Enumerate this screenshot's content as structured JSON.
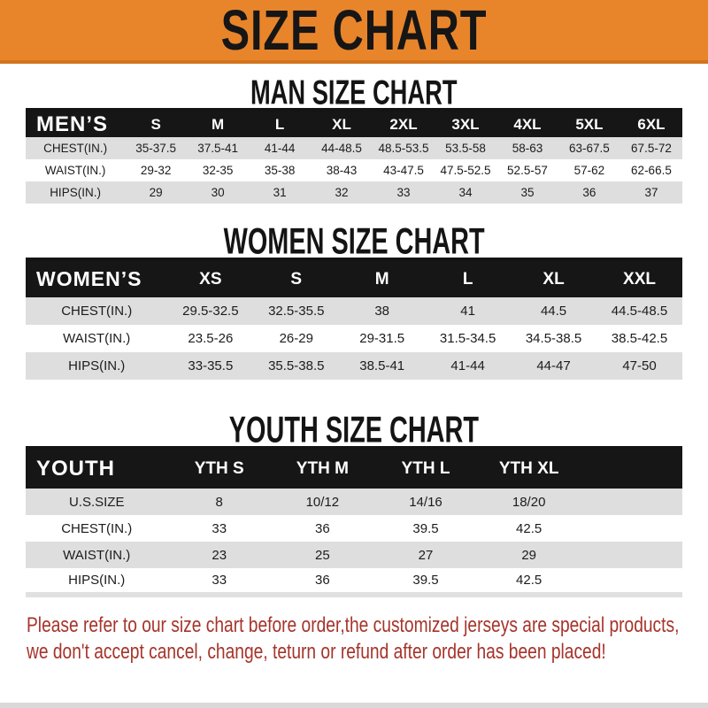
{
  "banner": {
    "title": "SIZE CHART",
    "background_color": "#E8852B",
    "text_color": "#161616"
  },
  "sections": [
    {
      "id": "men",
      "heading": "MAN SIZE CHART",
      "table": {
        "corner_label": "MEN’S",
        "columns": [
          "S",
          "M",
          "L",
          "XL",
          "2XL",
          "3XL",
          "4XL",
          "5XL",
          "6XL"
        ],
        "rows": [
          {
            "label": "CHEST(IN.)",
            "values": [
              "35-37.5",
              "37.5-41",
              "41-44",
              "44-48.5",
              "48.5-53.5",
              "53.5-58",
              "58-63",
              "63-67.5",
              "67.5-72"
            ]
          },
          {
            "label": "WAIST(IN.)",
            "values": [
              "29-32",
              "32-35",
              "35-38",
              "38-43",
              "43-47.5",
              "47.5-52.5",
              "52.5-57",
              "57-62",
              "62-66.5"
            ]
          },
          {
            "label": "HIPS(IN.)",
            "values": [
              "29",
              "30",
              "31",
              "32",
              "33",
              "34",
              "35",
              "36",
              "37"
            ]
          }
        ]
      }
    },
    {
      "id": "women",
      "heading": "WOMEN SIZE CHART",
      "table": {
        "corner_label": "WOMEN’S",
        "columns": [
          "XS",
          "S",
          "M",
          "L",
          "XL",
          "XXL"
        ],
        "rows": [
          {
            "label": "CHEST(IN.)",
            "values": [
              "29.5-32.5",
              "32.5-35.5",
              "38",
              "41",
              "44.5",
              "44.5-48.5"
            ]
          },
          {
            "label": "WAIST(IN.)",
            "values": [
              "23.5-26",
              "26-29",
              "29-31.5",
              "31.5-34.5",
              "34.5-38.5",
              "38.5-42.5"
            ]
          },
          {
            "label": "HIPS(IN.)",
            "values": [
              "33-35.5",
              "35.5-38.5",
              "38.5-41",
              "41-44",
              "44-47",
              "47-50"
            ]
          }
        ]
      }
    },
    {
      "id": "youth",
      "heading": "YOUTH SIZE CHART",
      "table": {
        "corner_label": "YOUTH",
        "columns": [
          "YTH S",
          "YTH M",
          "YTH L",
          "YTH XL"
        ],
        "rows": [
          {
            "label": "U.S.SIZE",
            "values": [
              "8",
              "10/12",
              "14/16",
              "18/20"
            ]
          },
          {
            "label": "CHEST(IN.)",
            "values": [
              "33",
              "36",
              "39.5",
              "42.5"
            ]
          },
          {
            "label": "WAIST(IN.)",
            "values": [
              "23",
              "25",
              "27",
              "29"
            ]
          },
          {
            "label": "HIPS(IN.)",
            "values": [
              "33",
              "36",
              "39.5",
              "42.5"
            ]
          }
        ]
      }
    }
  ],
  "notice": {
    "color": "#A6342B",
    "lines": [
      "Please refer to our size chart before order,the customized jerseys are special products,",
      "we don't accept cancel, change, teturn or refund after order has been placed!"
    ]
  }
}
